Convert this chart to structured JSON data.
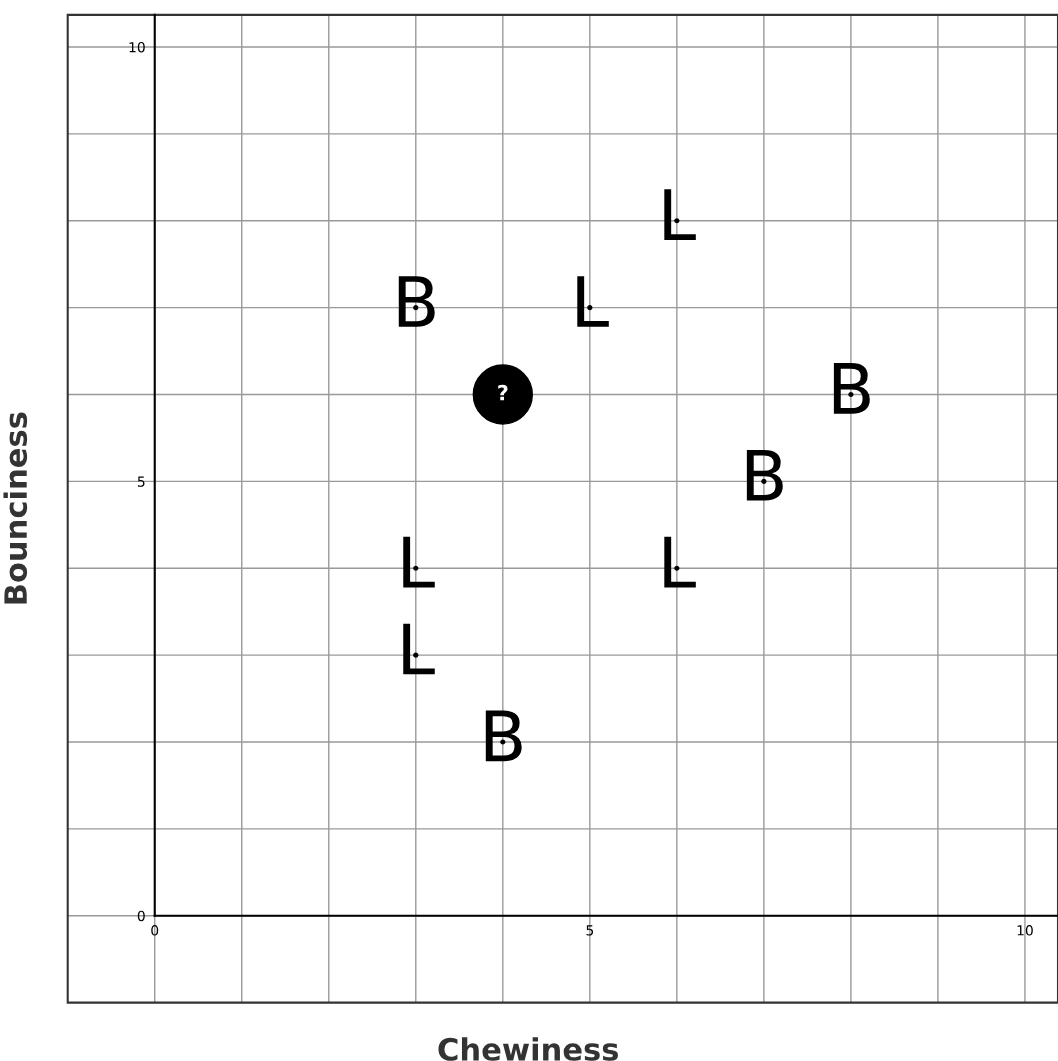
{
  "chart_data": {
    "type": "scatter",
    "xlabel": "Chewiness",
    "ylabel": "Bounciness",
    "xlim": [
      -1,
      10.38
    ],
    "ylim": [
      -1,
      10.37
    ],
    "xticks": [
      0,
      {
        "value": 1,
        "label": null
      },
      {
        "value": 2,
        "label": null
      },
      {
        "value": 3,
        "label": null
      },
      {
        "value": 4,
        "label": null
      },
      5,
      {
        "value": 6,
        "label": null
      },
      {
        "value": 7,
        "label": null
      },
      {
        "value": 8,
        "label": null
      },
      {
        "value": 9,
        "label": null
      },
      10
    ],
    "yticks": [
      0,
      {
        "value": 1,
        "label": null
      },
      {
        "value": 2,
        "label": null
      },
      {
        "value": 3,
        "label": null
      },
      {
        "value": 4,
        "label": null
      },
      5,
      {
        "value": 6,
        "label": null
      },
      {
        "value": 7,
        "label": null
      },
      {
        "value": 8,
        "label": null
      },
      {
        "value": 9,
        "label": null
      },
      10
    ],
    "grid": true,
    "marker": "none",
    "series": [
      {
        "name": "L",
        "color": "#000000",
        "x": [
          6,
          5,
          3,
          3,
          6
        ],
        "values": [
          8,
          7,
          4,
          3,
          4
        ]
      },
      {
        "name": "B",
        "color": "#000000",
        "x": [
          3,
          8,
          7,
          4
        ],
        "values": [
          7,
          6,
          5,
          2
        ]
      },
      {
        "name": "?",
        "color": "#000000",
        "marker": "circle",
        "x": [
          4
        ],
        "values": [
          6
        ]
      }
    ]
  }
}
